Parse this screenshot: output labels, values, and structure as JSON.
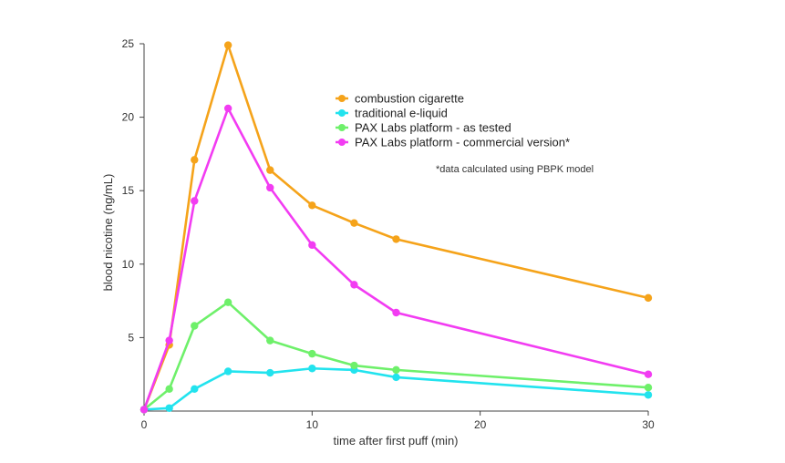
{
  "chart_data": {
    "type": "line",
    "xlabel": "time after first puff (min)",
    "ylabel": "blood nicotine (ng/mL)",
    "xlim": [
      0,
      30
    ],
    "ylim": [
      0,
      25
    ],
    "xticks": [
      0,
      10,
      20,
      30
    ],
    "yticks": [
      5,
      10,
      15,
      20,
      25
    ],
    "grid": false,
    "legend_position": "top-right",
    "x": [
      0,
      1.5,
      3,
      5,
      7.5,
      10,
      12.5,
      15,
      30
    ],
    "series": [
      {
        "name": "combustion cigarette",
        "color": "#F5A31A",
        "values": [
          0.1,
          4.5,
          17.1,
          24.9,
          16.4,
          14.0,
          12.8,
          11.7,
          7.7
        ]
      },
      {
        "name": "traditional e-liquid",
        "color": "#22E3EE",
        "values": [
          0.1,
          0.2,
          1.5,
          2.7,
          2.6,
          2.9,
          2.8,
          2.3,
          1.1
        ]
      },
      {
        "name": "PAX Labs platform - as tested",
        "color": "#6EF06A",
        "values": [
          0.1,
          1.5,
          5.8,
          7.4,
          4.8,
          3.9,
          3.1,
          2.8,
          1.6
        ]
      },
      {
        "name": "PAX Labs platform - commercial version*",
        "color": "#F23CF2",
        "values": [
          0.1,
          4.8,
          14.3,
          20.6,
          15.2,
          11.3,
          8.6,
          6.7,
          2.5
        ]
      }
    ],
    "annotations": [
      "*data calculated using PBPK model"
    ]
  }
}
